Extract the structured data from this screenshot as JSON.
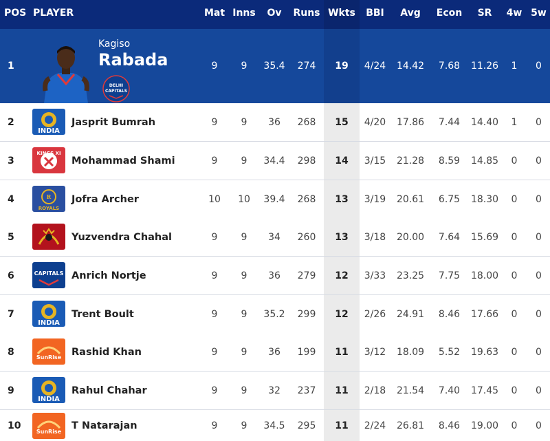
{
  "columns": {
    "pos": "POS",
    "player": "PLAYER",
    "mat": "Mat",
    "inns": "Inns",
    "ov": "Ov",
    "runs": "Runs",
    "wkts": "Wkts",
    "bbi": "BBI",
    "avg": "Avg",
    "econ": "Econ",
    "sr": "SR",
    "w4": "4w",
    "w5": "5w"
  },
  "colors": {
    "header": "#0b2a7a",
    "leader_row": "#15489b",
    "wkts_column": "#ebebeb"
  },
  "rows": [
    {
      "pos": "1",
      "first_name": "Kagiso",
      "last_name": "Rabada",
      "team_icon": "delhi-capitals-logo-icon",
      "team_badge_text": "DELHI CAPITALS",
      "mat": "9",
      "inns": "9",
      "ov": "35.4",
      "runs": "274",
      "wkts": "19",
      "bbi": "4/24",
      "avg": "14.42",
      "econ": "7.68",
      "sr": "11.26",
      "w4": "1",
      "w5": "0"
    },
    {
      "pos": "2",
      "name": "Jasprit Bumrah",
      "team_icon": "mumbai-indians-logo-icon",
      "team_text": "INDIA",
      "mat": "9",
      "inns": "9",
      "ov": "36",
      "runs": "268",
      "wkts": "15",
      "bbi": "4/20",
      "avg": "17.86",
      "econ": "7.44",
      "sr": "14.40",
      "w4": "1",
      "w5": "0"
    },
    {
      "pos": "3",
      "name": "Mohammad Shami",
      "team_icon": "kings-xi-punjab-logo-icon",
      "team_text": "KINGS XI",
      "mat": "9",
      "inns": "9",
      "ov": "34.4",
      "runs": "298",
      "wkts": "14",
      "bbi": "3/15",
      "avg": "21.28",
      "econ": "8.59",
      "sr": "14.85",
      "w4": "0",
      "w5": "0"
    },
    {
      "pos": "4",
      "name": "Jofra Archer",
      "team_icon": "rajasthan-royals-logo-icon",
      "team_text": "ROYALS",
      "mat": "10",
      "inns": "10",
      "ov": "39.4",
      "runs": "268",
      "wkts": "13",
      "bbi": "3/19",
      "avg": "20.61",
      "econ": "6.75",
      "sr": "18.30",
      "w4": "0",
      "w5": "0"
    },
    {
      "pos": "5",
      "name": "Yuzvendra Chahal",
      "team_icon": "royal-challengers-logo-icon",
      "mat": "9",
      "inns": "9",
      "ov": "34",
      "runs": "260",
      "wkts": "13",
      "bbi": "3/18",
      "avg": "20.00",
      "econ": "7.64",
      "sr": "15.69",
      "w4": "0",
      "w5": "0"
    },
    {
      "pos": "6",
      "name": "Anrich Nortje",
      "team_icon": "delhi-capitals-logo-icon",
      "team_text": "CAPITALS",
      "mat": "9",
      "inns": "9",
      "ov": "36",
      "runs": "279",
      "wkts": "12",
      "bbi": "3/33",
      "avg": "23.25",
      "econ": "7.75",
      "sr": "18.00",
      "w4": "0",
      "w5": "0"
    },
    {
      "pos": "7",
      "name": "Trent Boult",
      "team_icon": "mumbai-indians-logo-icon",
      "team_text": "INDIA",
      "mat": "9",
      "inns": "9",
      "ov": "35.2",
      "runs": "299",
      "wkts": "12",
      "bbi": "2/26",
      "avg": "24.91",
      "econ": "8.46",
      "sr": "17.66",
      "w4": "0",
      "w5": "0"
    },
    {
      "pos": "8",
      "name": "Rashid Khan",
      "team_icon": "sunrisers-logo-icon",
      "team_text": "SunRise",
      "mat": "9",
      "inns": "9",
      "ov": "36",
      "runs": "199",
      "wkts": "11",
      "bbi": "3/12",
      "avg": "18.09",
      "econ": "5.52",
      "sr": "19.63",
      "w4": "0",
      "w5": "0"
    },
    {
      "pos": "9",
      "name": "Rahul Chahar",
      "team_icon": "mumbai-indians-logo-icon",
      "team_text": "INDIA",
      "mat": "9",
      "inns": "9",
      "ov": "32",
      "runs": "237",
      "wkts": "11",
      "bbi": "2/18",
      "avg": "21.54",
      "econ": "7.40",
      "sr": "17.45",
      "w4": "0",
      "w5": "0"
    },
    {
      "pos": "10",
      "name": "T Natarajan",
      "team_icon": "sunrisers-logo-icon",
      "team_text": "SunRise",
      "mat": "9",
      "inns": "9",
      "ov": "34.5",
      "runs": "295",
      "wkts": "11",
      "bbi": "2/24",
      "avg": "26.81",
      "econ": "8.46",
      "sr": "19.00",
      "w4": "0",
      "w5": "0"
    }
  ]
}
